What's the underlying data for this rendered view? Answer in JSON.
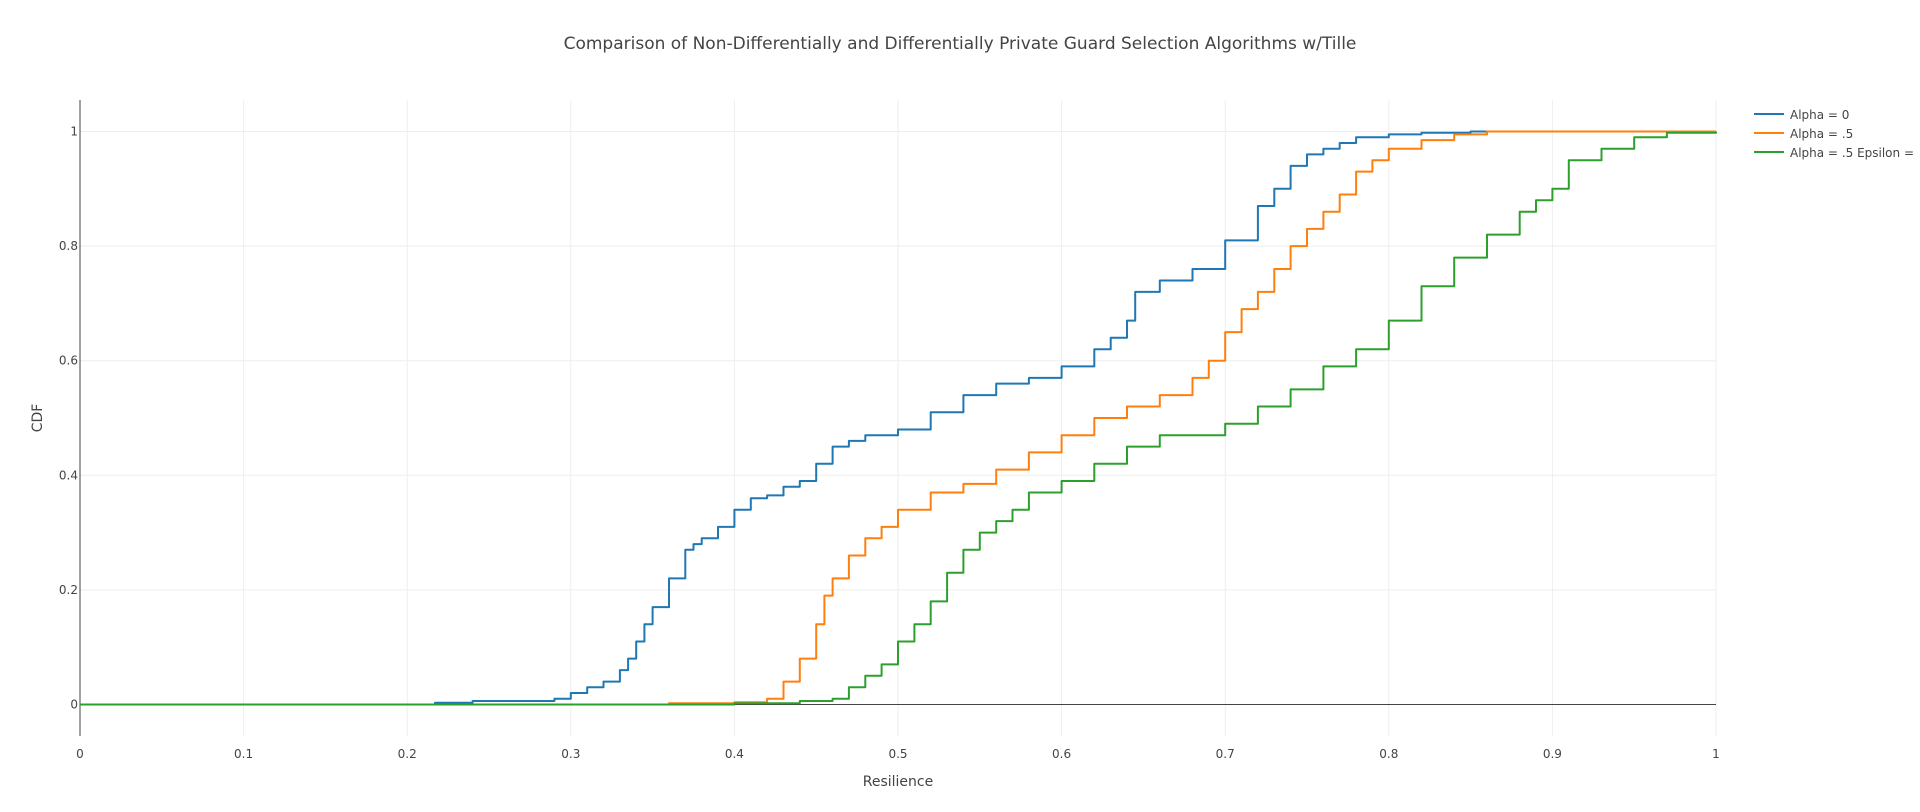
{
  "chart_data": {
    "type": "line",
    "title": "Comparison of Non-Differentially  and Differentially Private Guard Selection Algorithms w/Tille",
    "xlabel": "Resilience",
    "ylabel": "CDF",
    "xlim": [
      0,
      1
    ],
    "ylim": [
      -0.055,
      1.055
    ],
    "x_ticks": [
      0,
      0.1,
      0.2,
      0.3,
      0.4,
      0.5,
      0.6,
      0.7,
      0.8,
      0.9,
      1
    ],
    "x_tick_labels": [
      "0",
      "0.1",
      "0.2",
      "0.3",
      "0.4",
      "0.5",
      "0.6",
      "0.7",
      "0.8",
      "0.9",
      "1"
    ],
    "y_ticks": [
      0,
      0.2,
      0.4,
      0.6,
      0.8,
      1
    ],
    "y_tick_labels": [
      "0",
      "0.2",
      "0.4",
      "0.6",
      "0.8",
      "1"
    ],
    "grid": true,
    "legend_position": "top-right",
    "series": [
      {
        "name": "Alpha = 0",
        "color": "#1f77b4",
        "x": [
          0,
          0.2,
          0.217,
          0.24,
          0.27,
          0.29,
          0.3,
          0.31,
          0.32,
          0.33,
          0.335,
          0.34,
          0.345,
          0.35,
          0.36,
          0.37,
          0.375,
          0.38,
          0.39,
          0.4,
          0.41,
          0.42,
          0.43,
          0.44,
          0.45,
          0.46,
          0.47,
          0.48,
          0.5,
          0.52,
          0.54,
          0.56,
          0.58,
          0.6,
          0.62,
          0.63,
          0.64,
          0.645,
          0.66,
          0.68,
          0.7,
          0.72,
          0.73,
          0.74,
          0.75,
          0.76,
          0.77,
          0.78,
          0.8,
          0.82,
          0.85,
          1
        ],
        "y": [
          0,
          0,
          0.003,
          0.006,
          0.006,
          0.01,
          0.02,
          0.03,
          0.04,
          0.06,
          0.08,
          0.11,
          0.14,
          0.17,
          0.22,
          0.27,
          0.28,
          0.29,
          0.31,
          0.34,
          0.36,
          0.365,
          0.38,
          0.39,
          0.42,
          0.45,
          0.46,
          0.47,
          0.48,
          0.51,
          0.54,
          0.56,
          0.57,
          0.59,
          0.62,
          0.64,
          0.67,
          0.72,
          0.74,
          0.76,
          0.81,
          0.87,
          0.9,
          0.94,
          0.96,
          0.97,
          0.98,
          0.99,
          0.995,
          0.998,
          1,
          1
        ]
      },
      {
        "name": "Alpha = .5",
        "color": "#ff7f0e",
        "x": [
          0,
          0.36,
          0.4,
          0.42,
          0.43,
          0.44,
          0.45,
          0.455,
          0.46,
          0.47,
          0.48,
          0.49,
          0.5,
          0.52,
          0.54,
          0.56,
          0.58,
          0.6,
          0.62,
          0.64,
          0.66,
          0.68,
          0.69,
          0.7,
          0.71,
          0.72,
          0.73,
          0.74,
          0.75,
          0.76,
          0.77,
          0.78,
          0.79,
          0.8,
          0.82,
          0.84,
          0.86,
          1
        ],
        "y": [
          0,
          0.002,
          0.004,
          0.01,
          0.04,
          0.08,
          0.14,
          0.19,
          0.22,
          0.26,
          0.29,
          0.31,
          0.34,
          0.37,
          0.385,
          0.41,
          0.44,
          0.47,
          0.5,
          0.52,
          0.54,
          0.57,
          0.6,
          0.65,
          0.69,
          0.72,
          0.76,
          0.8,
          0.83,
          0.86,
          0.89,
          0.93,
          0.95,
          0.97,
          0.985,
          0.995,
          1,
          1
        ]
      },
      {
        "name": "Alpha = .5 Epsilon =",
        "color": "#2ca02c",
        "x": [
          0,
          0.4,
          0.44,
          0.46,
          0.47,
          0.48,
          0.49,
          0.5,
          0.51,
          0.52,
          0.53,
          0.54,
          0.55,
          0.56,
          0.57,
          0.58,
          0.6,
          0.62,
          0.64,
          0.66,
          0.7,
          0.72,
          0.74,
          0.76,
          0.78,
          0.8,
          0.82,
          0.84,
          0.86,
          0.88,
          0.89,
          0.9,
          0.91,
          0.93,
          0.95,
          0.97,
          1
        ],
        "y": [
          0,
          0.002,
          0.006,
          0.01,
          0.03,
          0.05,
          0.07,
          0.11,
          0.14,
          0.18,
          0.23,
          0.27,
          0.3,
          0.32,
          0.34,
          0.37,
          0.39,
          0.42,
          0.45,
          0.47,
          0.49,
          0.52,
          0.55,
          0.59,
          0.62,
          0.67,
          0.73,
          0.78,
          0.82,
          0.86,
          0.88,
          0.9,
          0.95,
          0.97,
          0.99,
          0.998,
          1
        ]
      }
    ]
  }
}
